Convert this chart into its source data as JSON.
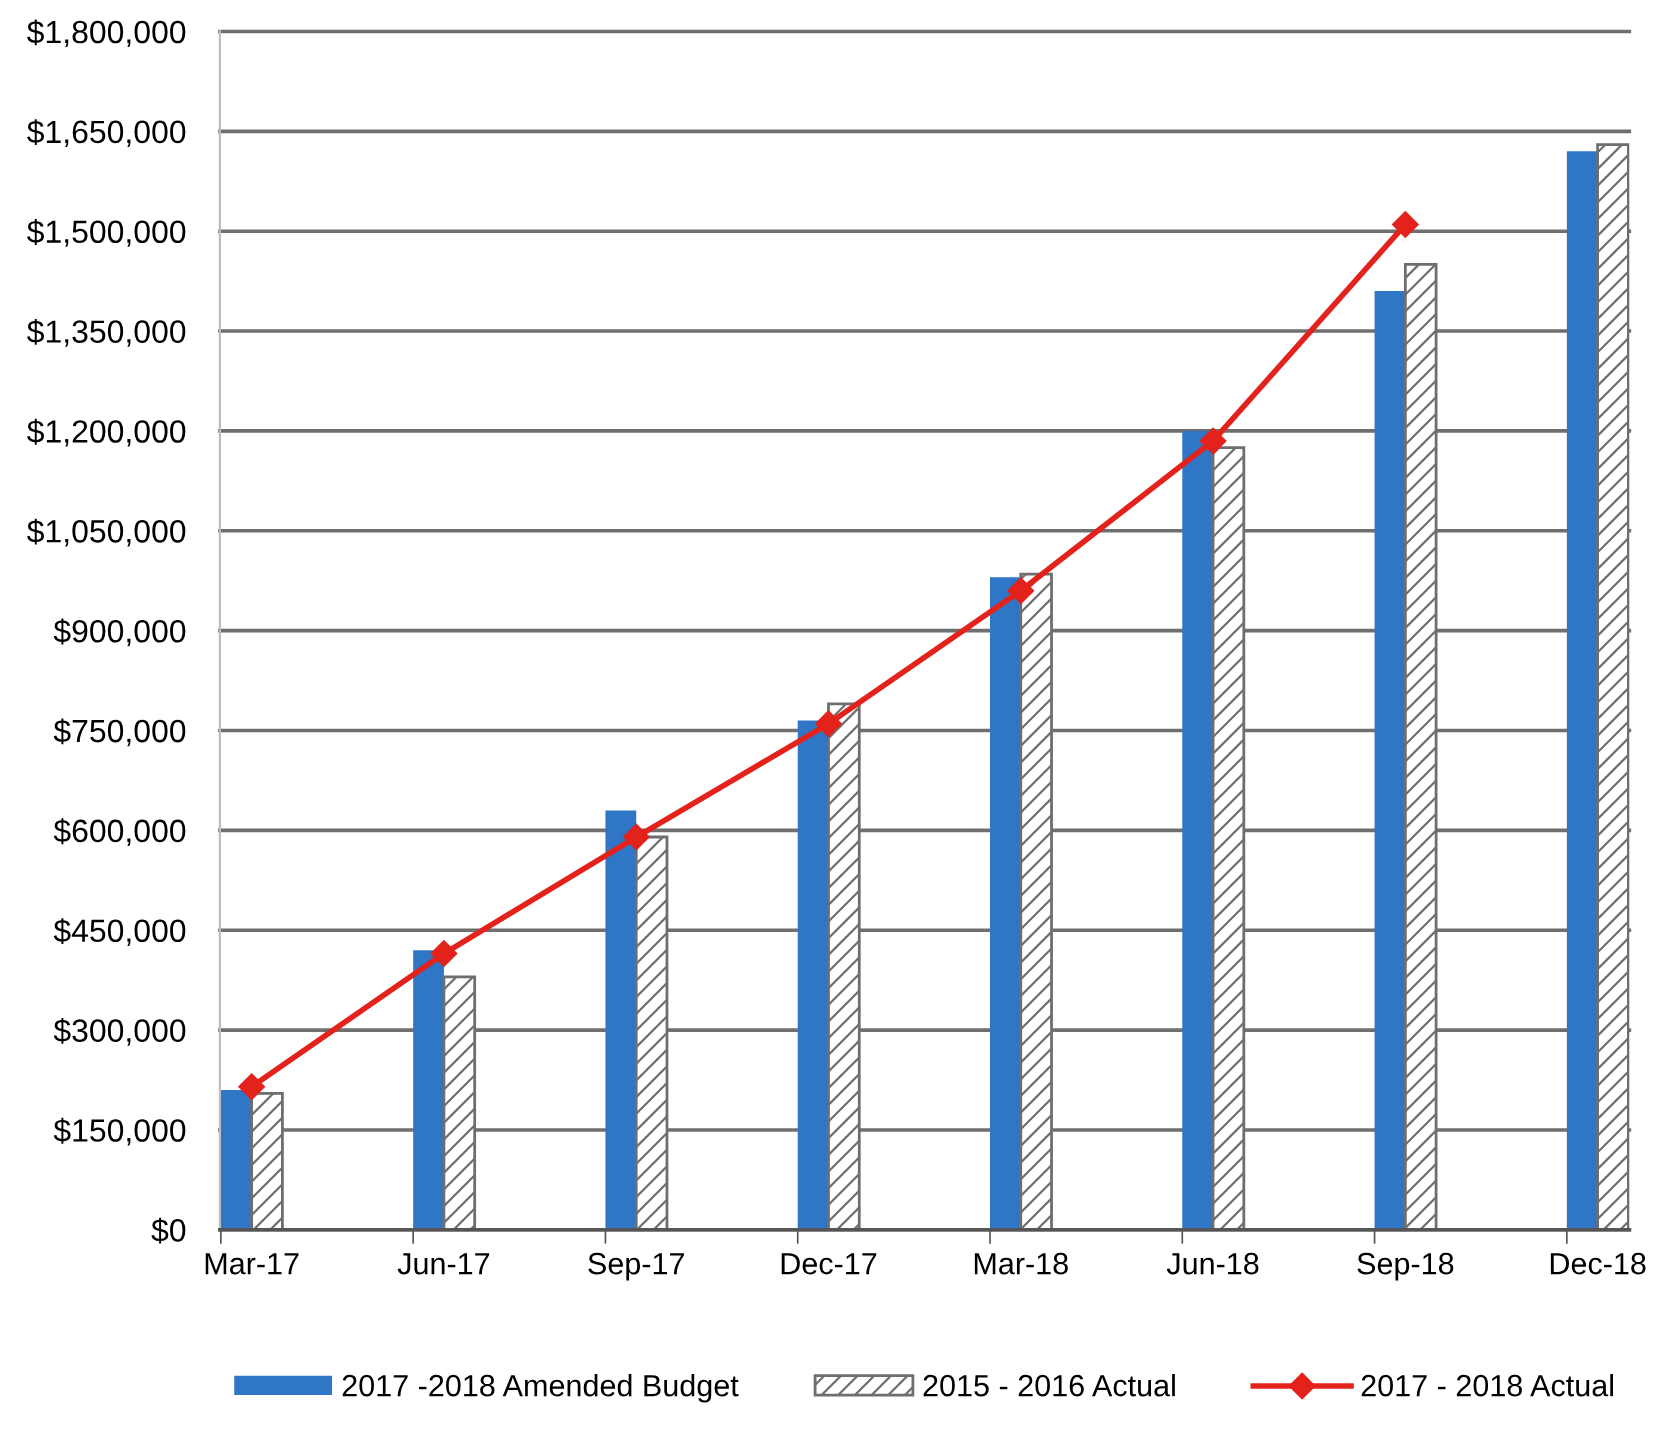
{
  "chart_data": {
    "type": "bar",
    "categories": [
      "Mar-17",
      "Jun-17",
      "Sep-17",
      "Dec-17",
      "Mar-18",
      "Jun-18",
      "Sep-18",
      "Dec-18"
    ],
    "series": [
      {
        "name": "2017 -2018 Amended Budget",
        "color": "#2f77c6",
        "values": [
          210000,
          420000,
          630000,
          765000,
          980000,
          1200000,
          1410000,
          1620000
        ]
      },
      {
        "name": "2015 - 2016 Actual",
        "color": "#6e6e6e",
        "values": [
          205000,
          380000,
          590000,
          790000,
          985000,
          1175000,
          1450000,
          1630000
        ]
      },
      {
        "name": "2017 - 2018 Actual",
        "type": "line",
        "color": "#e3221c",
        "marker": "diamond",
        "line_style": "solid",
        "values": [
          215000,
          415000,
          590000,
          760000,
          960000,
          1185000,
          1510000,
          null
        ]
      }
    ],
    "ylim": [
      0,
      1800000
    ],
    "yticks": [
      {
        "value": 0,
        "label": "$0"
      },
      {
        "value": 150000,
        "label": "$150,000"
      },
      {
        "value": 300000,
        "label": "$300,000"
      },
      {
        "value": 450000,
        "label": "$450,000"
      },
      {
        "value": 600000,
        "label": "$600,000"
      },
      {
        "value": 750000,
        "label": "$750,000"
      },
      {
        "value": 900000,
        "label": "$900,000"
      },
      {
        "value": 1050000,
        "label": "$1,050,000"
      },
      {
        "value": 1200000,
        "label": "$1,200,000"
      },
      {
        "value": 1350000,
        "label": "$1,350,000"
      },
      {
        "value": 1500000,
        "label": "$1,500,000"
      },
      {
        "value": 1650000,
        "label": "$1,650,000"
      },
      {
        "value": 1800000,
        "label": "$1,800,000"
      }
    ],
    "grid": "y",
    "legend": "bottom"
  }
}
